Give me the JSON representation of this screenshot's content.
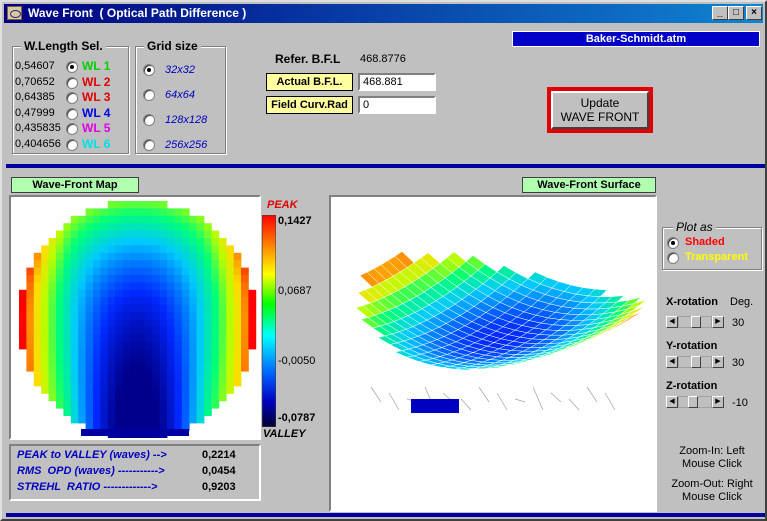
{
  "window": {
    "title": "Wave Front  ( Optical Path Difference )",
    "file_name": "Baker-Schmidt.atm",
    "controls": {
      "minimize": "_",
      "maximize": "□",
      "close": "×"
    }
  },
  "wavelength_group": {
    "legend": "W.Length Sel.",
    "items": [
      {
        "value": "0,54607",
        "label": "WL 1",
        "color": "#00d000",
        "selected": true
      },
      {
        "value": "0,70652",
        "label": "WL 2",
        "color": "#e00000",
        "selected": false
      },
      {
        "value": "0,64385",
        "label": "WL 3",
        "color": "#e00000",
        "selected": false
      },
      {
        "value": "0,47999",
        "label": "WL 4",
        "color": "#0000e0",
        "selected": false
      },
      {
        "value": "0,435835",
        "label": "WL 5",
        "color": "#e000e0",
        "selected": false
      },
      {
        "value": "0,404656",
        "label": "WL 6",
        "color": "#00e0e0",
        "selected": false
      }
    ]
  },
  "grid_group": {
    "legend": "Grid size",
    "items": [
      {
        "label": "32x32",
        "selected": true
      },
      {
        "label": "64x64",
        "selected": false
      },
      {
        "label": "128x128",
        "selected": false
      },
      {
        "label": "256x256",
        "selected": false
      }
    ]
  },
  "focus": {
    "ref_label": "Refer. B.F.L",
    "ref_value": "468.8776",
    "actual_label": "Actual B.F.L.",
    "actual_value": "468.881",
    "field_label": "Field Curv.Rad",
    "field_value": "0"
  },
  "update_button": {
    "line1": "Update",
    "line2": "WAVE FRONT"
  },
  "map": {
    "label": "Wave-Front  Map",
    "peak_label": "PEAK",
    "valley_label": "VALLEY",
    "scale": [
      "0,1427",
      "0,0687",
      "-0,0050",
      "-0,0787"
    ]
  },
  "stats": [
    {
      "label": "PEAK to VALLEY (waves) -->",
      "value": "0,2214"
    },
    {
      "label": "RMS  OPD (waves) ----------->",
      "value": "0,0454"
    },
    {
      "label": "STREHL  RATIO ------------->",
      "value": "0,9203"
    }
  ],
  "surface": {
    "label": "Wave-Front Surface"
  },
  "plot_as": {
    "legend": "Plot as",
    "items": [
      {
        "label": "Shaded",
        "color": "#ff0000",
        "selected": true
      },
      {
        "label": "Transparent",
        "color": "#ffff00",
        "selected": false
      }
    ]
  },
  "rotation": {
    "x_label": "X-rotation",
    "deg_label": "Deg.",
    "x_value": "30",
    "y_label": "Y-rotation",
    "y_value": "30",
    "z_label": "Z-rotation",
    "z_value": "-10"
  },
  "zoom": {
    "in_line1": "Zoom-In: Left",
    "in_line2": "Mouse  Click",
    "out_line1": "Zoom-Out: Right",
    "out_line2": "Mouse  Click"
  }
}
